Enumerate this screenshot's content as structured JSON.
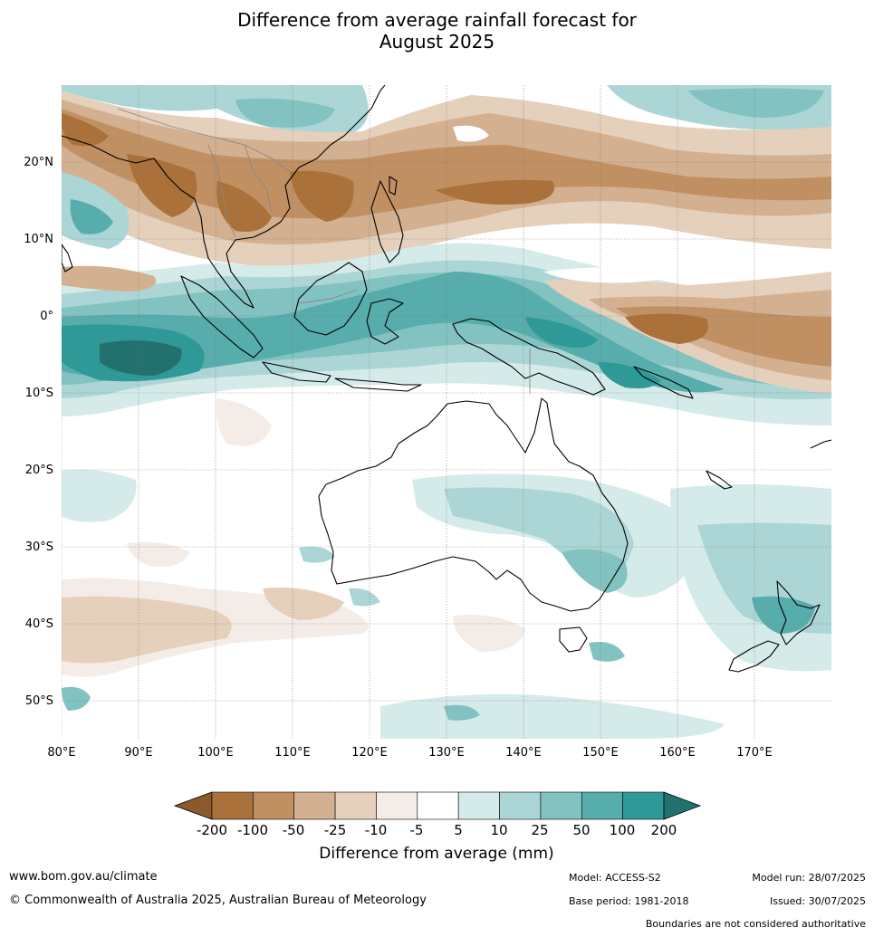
{
  "title_line1": "Difference from average rainfall forecast for",
  "title_line2": "August 2025",
  "axes": {
    "lon_labels": [
      "80°E",
      "90°E",
      "100°E",
      "110°E",
      "120°E",
      "130°E",
      "140°E",
      "150°E",
      "160°E",
      "170°E"
    ],
    "lat_labels": [
      "20°N",
      "10°N",
      "0°",
      "10°S",
      "20°S",
      "30°S",
      "40°S",
      "50°S"
    ]
  },
  "colorbar": {
    "title": "Difference from average (mm)",
    "labels": [
      "-200",
      "-100",
      "-50",
      "-25",
      "-10",
      "-5",
      "5",
      "10",
      "25",
      "50",
      "100",
      "200"
    ],
    "colors": [
      "#8b5a2b",
      "#aa713a",
      "#c09063",
      "#d3b08f",
      "#e5d0bc",
      "#f4ece6",
      "#ffffff",
      "#d5ebea",
      "#acd6d5",
      "#82c2c0",
      "#57adab",
      "#2e9996",
      "#22716f"
    ]
  },
  "footer": {
    "website": "www.bom.gov.au/climate",
    "copyright": "© Commonwealth of Australia 2025, Australian Bureau of Meteorology",
    "model": "Model: ACCESS-S2",
    "base_period": "Base period: 1981-2018",
    "model_run": "Model run: 28/07/2025",
    "issued": "Issued: 30/07/2025",
    "disclaimer": "Boundaries are not considered authoritative"
  }
}
